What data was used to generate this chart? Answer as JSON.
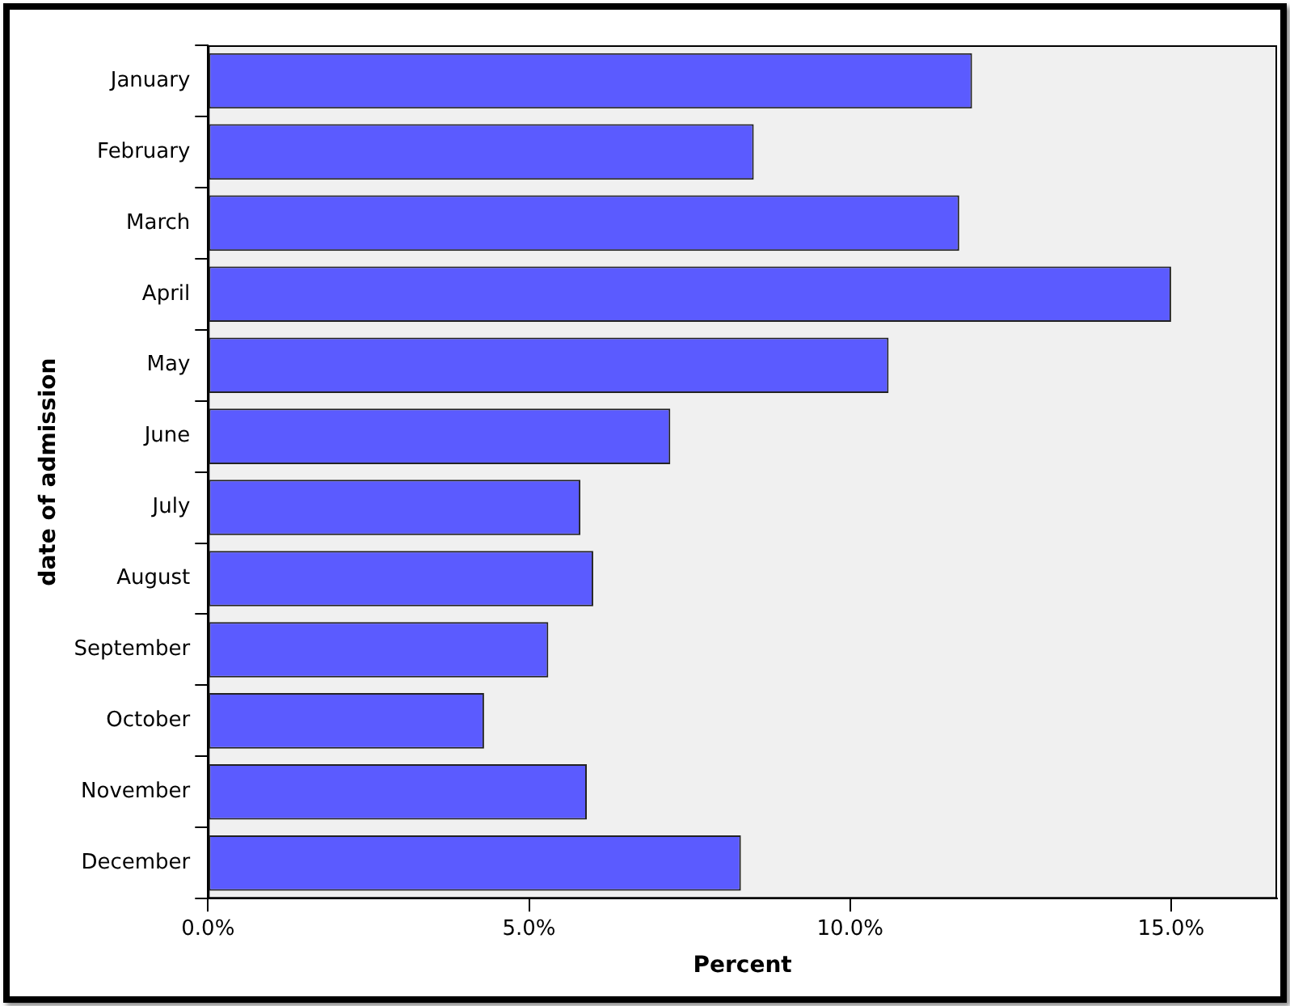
{
  "chart_data": {
    "type": "bar",
    "orientation": "horizontal",
    "xlabel": "Percent",
    "ylabel": "date of admission",
    "categories": [
      "January",
      "February",
      "March",
      "April",
      "May",
      "June",
      "July",
      "August",
      "September",
      "October",
      "November",
      "December"
    ],
    "values": [
      11.9,
      8.5,
      11.7,
      15.0,
      10.6,
      7.2,
      5.8,
      6.0,
      5.3,
      4.3,
      5.9,
      8.3
    ],
    "color": "#5b5bff",
    "xlim": [
      0,
      16.65
    ],
    "xticks": [
      {
        "value": 0,
        "label": "0.0%"
      },
      {
        "value": 5,
        "label": "5.0%"
      },
      {
        "value": 10,
        "label": "10.0%"
      },
      {
        "value": 15,
        "label": "15.0%"
      }
    ],
    "grid": false,
    "legend": false
  }
}
